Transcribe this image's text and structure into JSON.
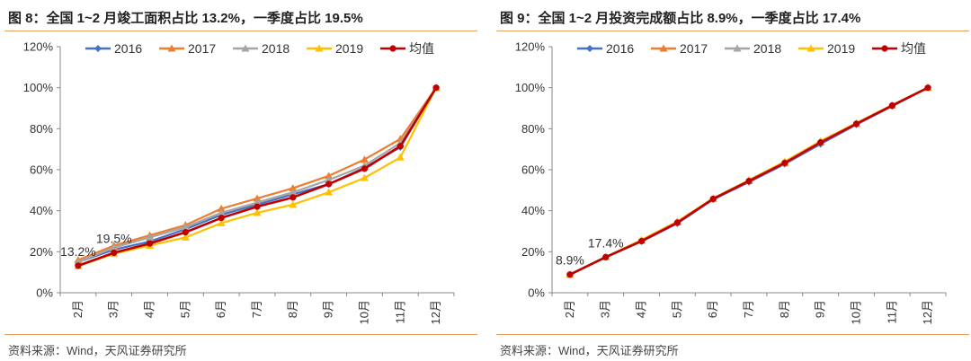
{
  "colors": {
    "2016": "#4472c4",
    "2017": "#ed7d31",
    "2018": "#a5a5a5",
    "2019": "#ffc000",
    "avg": "#c00000",
    "rule": "#e8a060"
  },
  "chart_data": [
    {
      "type": "line",
      "title": "图 8：全国 1~2 月竣工面积占比 13.2%，一季度占比 19.5%",
      "source": "资料来源：Wind，天风证券研究所",
      "categories": [
        "2月",
        "3月",
        "4月",
        "5月",
        "6月",
        "7月",
        "8月",
        "9月",
        "10月",
        "11月",
        "12月"
      ],
      "ylim": [
        0,
        120
      ],
      "yticks": [
        "0%",
        "20%",
        "40%",
        "60%",
        "80%",
        "100%",
        "120%"
      ],
      "series": [
        {
          "name": "2016",
          "color_key": "2016",
          "marker": "diamond",
          "values": [
            15,
            21,
            25,
            31,
            38,
            43,
            48,
            53,
            61,
            71,
            100
          ]
        },
        {
          "name": "2017",
          "color_key": "2017",
          "marker": "triangle",
          "values": [
            16,
            23,
            28,
            33,
            41,
            46,
            51,
            57,
            65,
            75,
            100
          ]
        },
        {
          "name": "2018",
          "color_key": "2018",
          "marker": "triangle",
          "values": [
            15,
            22,
            27,
            32,
            39,
            44,
            49,
            55,
            62,
            73,
            100
          ]
        },
        {
          "name": "2019",
          "color_key": "2019",
          "marker": "triangle",
          "values": [
            13,
            19,
            23,
            27,
            34,
            39,
            43,
            49,
            56,
            66,
            100
          ]
        },
        {
          "name": "均值",
          "color_key": "avg",
          "marker": "circle",
          "values": [
            13.2,
            19.5,
            24,
            29.5,
            36.5,
            42,
            46.5,
            53,
            60.5,
            71.5,
            100
          ]
        }
      ],
      "annotations": [
        {
          "text": "13.2%",
          "category_index": 0,
          "value": 13.2
        },
        {
          "text": "19.5%",
          "category_index": 1,
          "value": 19.5
        }
      ]
    },
    {
      "type": "line",
      "title": "图 9：全国 1~2 月投资完成额占比 8.9%，一季度占比 17.4%",
      "source": "资料来源：Wind，天风证券研究所",
      "categories": [
        "2月",
        "3月",
        "4月",
        "5月",
        "6月",
        "7月",
        "8月",
        "9月",
        "10月",
        "11月",
        "12月"
      ],
      "ylim": [
        0,
        120
      ],
      "yticks": [
        "0%",
        "20%",
        "40%",
        "60%",
        "80%",
        "100%",
        "120%"
      ],
      "series": [
        {
          "name": "2016",
          "color_key": "2016",
          "marker": "diamond",
          "values": [
            8.8,
            17.3,
            25,
            33.8,
            45.5,
            54,
            62.8,
            72.5,
            82,
            91,
            100
          ]
        },
        {
          "name": "2017",
          "color_key": "2017",
          "marker": "triangle",
          "values": [
            8.9,
            17.4,
            25.5,
            34.5,
            46,
            54.8,
            63.5,
            73.5,
            82.5,
            91.5,
            100
          ]
        },
        {
          "name": "2018",
          "color_key": "2018",
          "marker": "triangle",
          "values": [
            8.8,
            17.4,
            25.5,
            34.3,
            45.8,
            54.5,
            63.2,
            73.3,
            82.3,
            91.3,
            100
          ]
        },
        {
          "name": "2019",
          "color_key": "2019",
          "marker": "triangle",
          "values": [
            8.9,
            17.4,
            25.8,
            34.8,
            46,
            55,
            64,
            74,
            82.8,
            91.5,
            100
          ]
        },
        {
          "name": "均值",
          "color_key": "avg",
          "marker": "circle",
          "values": [
            8.9,
            17.4,
            25.2,
            34.2,
            45.8,
            54.5,
            63.3,
            73.3,
            82.4,
            91.3,
            100
          ]
        }
      ],
      "annotations": [
        {
          "text": "8.9%",
          "category_index": 0,
          "value": 8.9
        },
        {
          "text": "17.4%",
          "category_index": 1,
          "value": 17.4
        }
      ]
    }
  ]
}
